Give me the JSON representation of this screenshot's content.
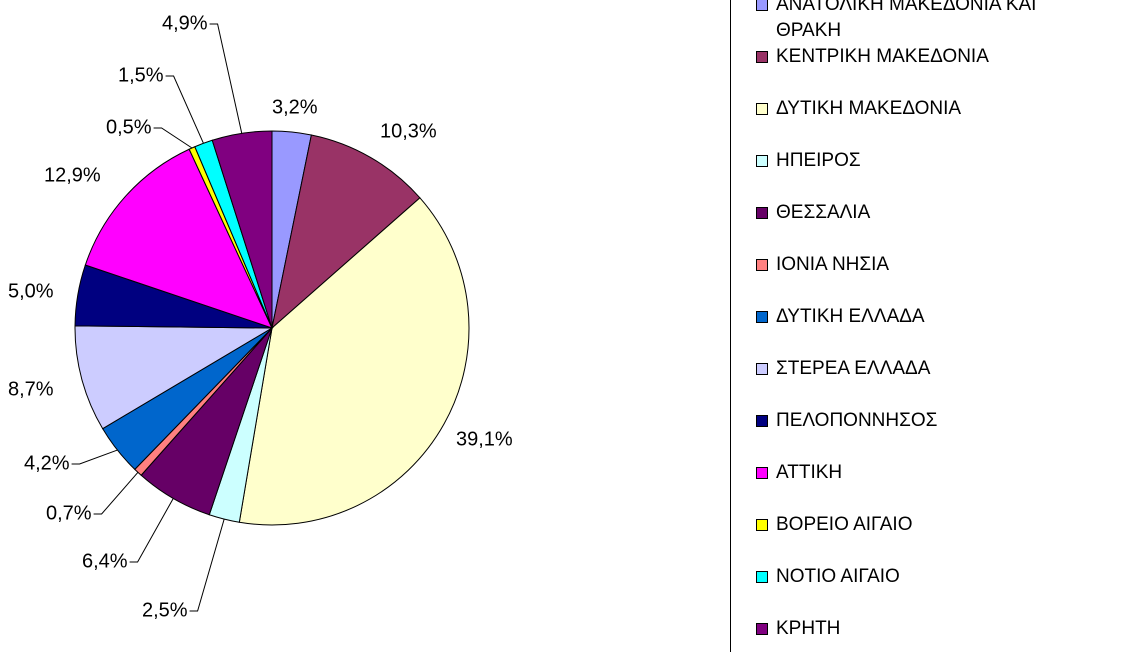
{
  "chart_data": {
    "type": "pie",
    "categories": [
      "ΑΝΑΤΟΛΙΚΗ ΜΑΚΕΔΟΝΙΑ ΚΑΙ ΘΡΑΚΗ",
      "ΚΕΝΤΡΙΚΗ ΜΑΚΕΔΟΝΙΑ",
      "ΔΥΤΙΚΗ ΜΑΚΕΔΟΝΙΑ",
      "ΗΠΕΙΡΟΣ",
      "ΘΕΣΣΑΛΙΑ",
      "ΙΟΝΙΑ ΝΗΣΙΑ",
      "ΔΥΤΙΚΗ ΕΛΛΑΔΑ",
      "ΣΤΕΡΕΑ ΕΛΛΑΔΑ",
      "ΠΕΛΟΠΟΝΝΗΣΟΣ",
      "ΑΤΤΙΚΗ",
      "ΒΟΡΕΙΟ ΑΙΓΑΙΟ",
      "ΝΟΤΙΟ ΑΙΓΑΙΟ",
      "ΚΡΗΤΗ"
    ],
    "values": [
      3.2,
      10.3,
      39.1,
      2.5,
      6.4,
      0.7,
      4.2,
      8.7,
      5.0,
      12.9,
      0.5,
      1.5,
      4.9
    ],
    "value_labels": [
      "3,2%",
      "10,3%",
      "39,1%",
      "2,5%",
      "6,4%",
      "0,7%",
      "4,2%",
      "8,7%",
      "5,0%",
      "12,9%",
      "0,5%",
      "1,5%",
      "4,9%"
    ],
    "colors": [
      "#9999ff",
      "#993366",
      "#ffffcc",
      "#ccffff",
      "#660066",
      "#ff8080",
      "#0066cc",
      "#ccccff",
      "#000080",
      "#ff00ff",
      "#ffff00",
      "#00ffff",
      "#800080"
    ],
    "legend": "right"
  }
}
